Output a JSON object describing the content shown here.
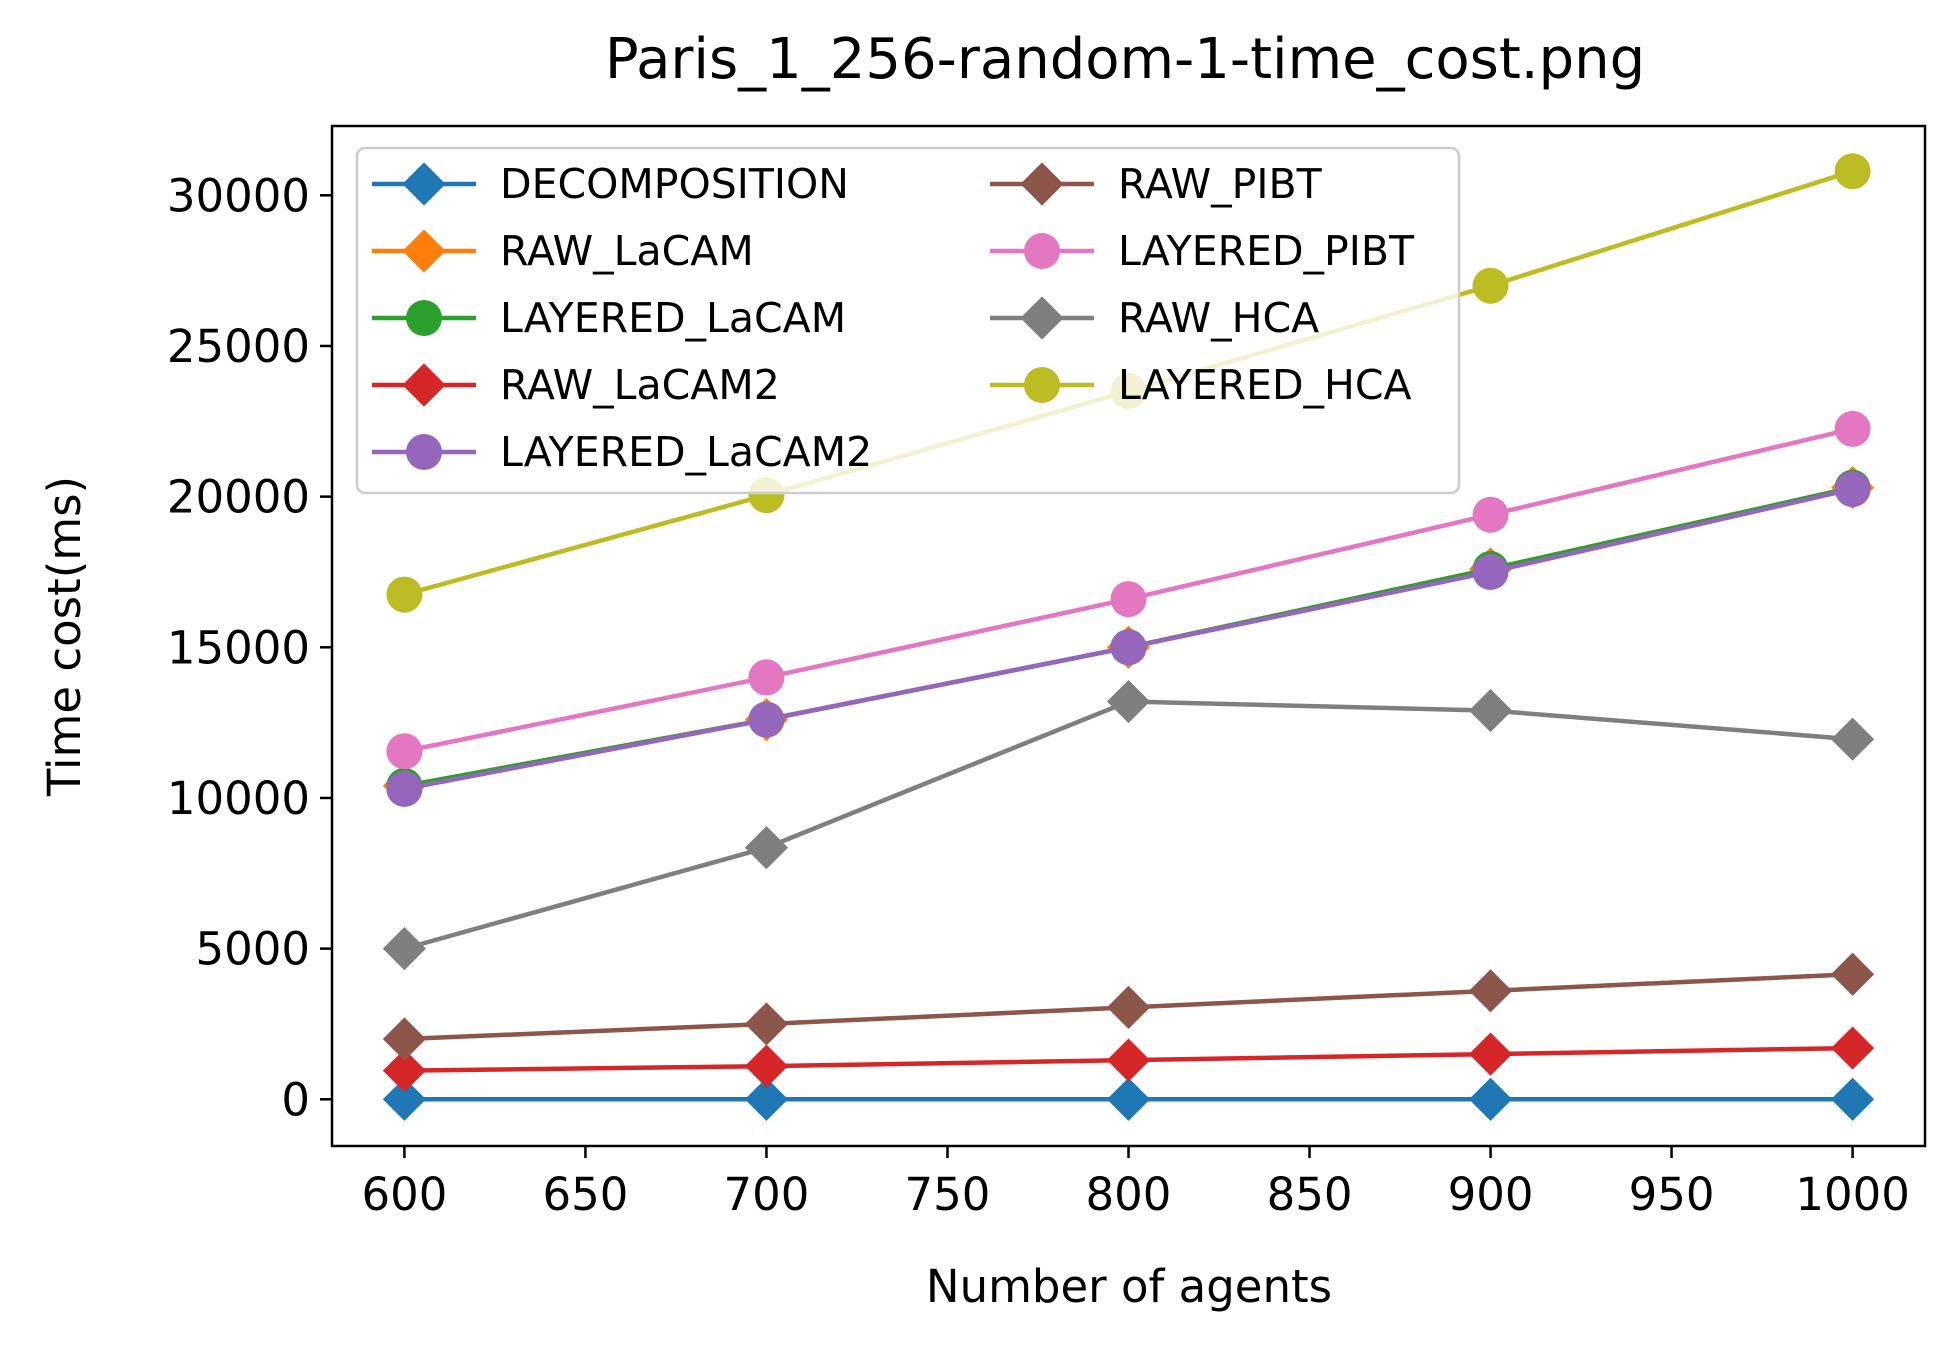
{
  "chart_data": {
    "type": "line",
    "title": "Paris_1_256-random-1-time_cost.png",
    "xlabel": "Number of agents",
    "ylabel": "Time cost(ms)",
    "xlim": [
      580,
      1020
    ],
    "ylim": [
      -1550,
      32300
    ],
    "xticks": [
      600,
      650,
      700,
      750,
      800,
      850,
      900,
      950,
      1000
    ],
    "xtick_labels": [
      "600",
      "650",
      "700",
      "750",
      "800",
      "850",
      "900",
      "950",
      "1000"
    ],
    "yticks": [
      0,
      5000,
      10000,
      15000,
      20000,
      25000,
      30000
    ],
    "ytick_labels": [
      "0",
      "5000",
      "10000",
      "15000",
      "20000",
      "25000",
      "30000"
    ],
    "grid": false,
    "legend_position": "top-left",
    "x": [
      600,
      700,
      800,
      900,
      1000
    ],
    "series": [
      {
        "name": "DECOMPOSITION",
        "marker": "diamond",
        "color": "#1f77b4",
        "values": [
          0,
          0,
          0,
          0,
          0
        ]
      },
      {
        "name": "RAW_LaCAM",
        "marker": "diamond",
        "color": "#ff7f0e",
        "values": [
          10400,
          12600,
          15000,
          17600,
          20300
        ]
      },
      {
        "name": "LAYERED_LaCAM",
        "marker": "circle",
        "color": "#2ca02c",
        "values": [
          10400,
          12600,
          15000,
          17600,
          20300
        ]
      },
      {
        "name": "RAW_LaCAM2",
        "marker": "diamond",
        "color": "#d62728",
        "values": [
          950,
          1100,
          1300,
          1500,
          1700
        ]
      },
      {
        "name": "LAYERED_LaCAM2",
        "marker": "circle",
        "color": "#9467bd",
        "values": [
          10300,
          12600,
          15000,
          17500,
          20250
        ]
      },
      {
        "name": "RAW_PIBT",
        "marker": "diamond",
        "color": "#8c564b",
        "values": [
          2000,
          2500,
          3050,
          3600,
          4150
        ]
      },
      {
        "name": "LAYERED_PIBT",
        "marker": "circle",
        "color": "#e377c2",
        "values": [
          11550,
          14000,
          16600,
          19400,
          22250
        ]
      },
      {
        "name": "RAW_HCA",
        "marker": "diamond",
        "color": "#7f7f7f",
        "values": [
          5000,
          8350,
          13200,
          12900,
          11950
        ]
      },
      {
        "name": "LAYERED_HCA",
        "marker": "circle",
        "color": "#bcbd22",
        "values": [
          16750,
          20050,
          23500,
          27000,
          30800
        ]
      }
    ]
  }
}
